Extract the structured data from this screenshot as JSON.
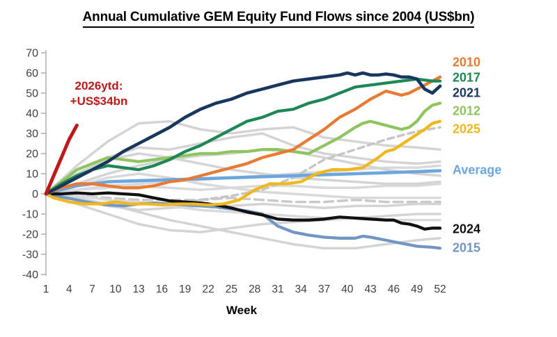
{
  "title": "Annual Cumulative GEM Equity Fund Flows since 2004 (US$bn)",
  "annotation": {
    "line1": "2026ytd:",
    "line2": "+US$34bn",
    "color": "#c01818"
  },
  "legend": [
    {
      "label": "2010",
      "color": "#e87b33"
    },
    {
      "label": "2017",
      "color": "#1e8756"
    },
    {
      "label": "2021",
      "color": "#17375e"
    },
    {
      "label": "2012",
      "color": "#8fc560"
    },
    {
      "label": "2025",
      "color": "#f0b71e"
    },
    {
      "label": "Average",
      "color": "#6ca6df"
    },
    {
      "label": "2024",
      "color": "#111111"
    },
    {
      "label": "2015",
      "color": "#7296c4"
    }
  ],
  "chart_data": {
    "type": "line",
    "title": "Annual Cumulative GEM Equity Fund Flows since 2004 (US$bn)",
    "xlabel": "Week",
    "ylabel": "",
    "xlim": [
      1,
      52
    ],
    "ylim": [
      -40,
      70
    ],
    "x_ticks": [
      1,
      4,
      7,
      10,
      13,
      16,
      19,
      22,
      25,
      28,
      31,
      34,
      37,
      40,
      43,
      46,
      49,
      52
    ],
    "y_ticks": [
      70,
      60,
      50,
      40,
      30,
      20,
      10,
      0,
      -10,
      -20,
      -30,
      -40
    ],
    "grid": false,
    "legend_position": "right",
    "annotation": "2026ytd: +US$34bn",
    "series": [
      {
        "name": "gray-1",
        "role": "background",
        "color": "#d4d4d4",
        "weeks": [
          1,
          5,
          9,
          13,
          17,
          21,
          25,
          29,
          33,
          37,
          41,
          45,
          49,
          52
        ],
        "values": [
          0,
          14,
          26,
          35,
          36,
          32,
          30,
          32,
          33,
          28,
          26,
          24,
          23,
          22
        ]
      },
      {
        "name": "gray-2",
        "role": "background",
        "color": "#d4d4d4",
        "weeks": [
          1,
          5,
          9,
          13,
          17,
          21,
          25,
          29,
          33,
          37,
          41,
          45,
          49,
          52
        ],
        "values": [
          0,
          8,
          18,
          23,
          22,
          25,
          28,
          30,
          24,
          20,
          18,
          16,
          15,
          16
        ]
      },
      {
        "name": "gray-3",
        "role": "background",
        "color": "#d9d9d9",
        "weeks": [
          1,
          5,
          9,
          13,
          17,
          21,
          25,
          29,
          33,
          37,
          41,
          45,
          49,
          52
        ],
        "values": [
          0,
          2,
          4,
          5,
          6,
          7,
          8,
          9,
          10,
          11,
          12,
          13,
          13,
          14
        ]
      },
      {
        "name": "gray-4",
        "role": "background",
        "color": "#d4d4d4",
        "weeks": [
          1,
          5,
          9,
          13,
          17,
          21,
          25,
          29,
          33,
          37,
          41,
          45,
          49,
          52
        ],
        "values": [
          0,
          5,
          10,
          14,
          17,
          19,
          20,
          22,
          21,
          18,
          15,
          12,
          10,
          9
        ]
      },
      {
        "name": "gray-5",
        "role": "background",
        "color": "#d9d9d9",
        "weeks": [
          1,
          5,
          9,
          13,
          17,
          21,
          25,
          29,
          33,
          37,
          41,
          45,
          49,
          52
        ],
        "values": [
          0,
          2,
          3,
          4,
          3,
          2,
          3,
          4,
          4,
          3,
          3,
          4,
          4,
          5
        ]
      },
      {
        "name": "gray-6-dashed",
        "role": "background",
        "color": "#c9c9c9",
        "dash": "13 7",
        "weeks": [
          1,
          5,
          9,
          13,
          17,
          21,
          25,
          29,
          33,
          37,
          41,
          45,
          49,
          52
        ],
        "values": [
          0,
          -1,
          -2,
          -3,
          -3,
          -3,
          -2,
          -3,
          -4,
          -4,
          -3,
          -4,
          -4,
          -4
        ]
      },
      {
        "name": "gray-7",
        "role": "background",
        "color": "#d4d4d4",
        "weeks": [
          1,
          5,
          9,
          13,
          17,
          21,
          25,
          29,
          33,
          37,
          41,
          45,
          49,
          52
        ],
        "values": [
          0,
          -3,
          -6,
          -8,
          -7,
          -6,
          -6,
          -5,
          -6,
          -7,
          -6,
          -6,
          -5,
          -5
        ]
      },
      {
        "name": "gray-8",
        "role": "background",
        "color": "#d4d4d4",
        "weeks": [
          1,
          5,
          9,
          13,
          17,
          21,
          25,
          29,
          33,
          37,
          41,
          45,
          49,
          52
        ],
        "values": [
          0,
          -5,
          -10,
          -15,
          -18,
          -19,
          -17,
          -15,
          -14,
          -13,
          -12,
          -11,
          -10,
          -10
        ]
      },
      {
        "name": "gray-9",
        "role": "background",
        "color": "#d4d4d4",
        "weeks": [
          1,
          5,
          9,
          13,
          17,
          21,
          25,
          29,
          33,
          37,
          41,
          45,
          49,
          52
        ],
        "values": [
          0,
          -2,
          -5,
          -9,
          -13,
          -16,
          -19,
          -22,
          -25,
          -27,
          -27,
          -25,
          -23,
          -22
        ]
      },
      {
        "name": "gray-10",
        "role": "background",
        "color": "#d9d9d9",
        "weeks": [
          1,
          5,
          9,
          13,
          17,
          21,
          25,
          29,
          33,
          37,
          41,
          45,
          49,
          52
        ],
        "values": [
          0,
          -1,
          -3,
          -4,
          -6,
          -8,
          -9,
          -10,
          -11,
          -12,
          -12,
          -13,
          -13,
          -13
        ]
      },
      {
        "name": "gray-11",
        "role": "background",
        "color": "#d4d4d4",
        "weeks": [
          1,
          5,
          9,
          13,
          17,
          21,
          25,
          29,
          33,
          37,
          41,
          45,
          49,
          52
        ],
        "values": [
          0,
          10,
          17,
          20,
          18,
          15,
          12,
          10,
          8,
          7,
          6,
          5,
          5,
          6
        ]
      },
      {
        "name": "gray-12",
        "role": "background",
        "color": "#d9d9d9",
        "weeks": [
          1,
          5,
          9,
          13,
          17,
          21,
          25,
          29,
          33,
          37,
          41,
          45,
          49,
          52
        ],
        "values": [
          0,
          4,
          8,
          10,
          8,
          5,
          3,
          1,
          0,
          -1,
          -2,
          -2,
          -2,
          -2
        ]
      },
      {
        "name": "gray-13-dashed",
        "role": "background",
        "color": "#c6c6c6",
        "dash": "9 6",
        "weeks": [
          17,
          21,
          25,
          29,
          33,
          37,
          41,
          45,
          49,
          52
        ],
        "values": [
          -5,
          -3,
          -1,
          2,
          8,
          17,
          22,
          27,
          31,
          33
        ]
      },
      {
        "name": "Average",
        "role": "average",
        "color": "#6ca6df",
        "weeks": [
          1,
          3,
          5,
          7,
          9,
          13,
          17,
          21,
          25,
          29,
          33,
          37,
          41,
          45,
          49,
          52
        ],
        "values": [
          0,
          2,
          4,
          5,
          6,
          6.5,
          7,
          7.5,
          8,
          8.5,
          9,
          9.5,
          10,
          10.5,
          11,
          11.5
        ]
      },
      {
        "name": "2015",
        "role": "year",
        "color": "#7296c4",
        "weeks": [
          1,
          3,
          5,
          7,
          9,
          11,
          13,
          15,
          17,
          19,
          21,
          23,
          25,
          27,
          29,
          30,
          31,
          32,
          33,
          35,
          37,
          39,
          41,
          42,
          43,
          45,
          47,
          49,
          51,
          52
        ],
        "values": [
          0,
          -1.5,
          -3,
          -4.5,
          -5.5,
          -6,
          -5,
          -4.5,
          -5,
          -5.5,
          -6,
          -6.5,
          -7.5,
          -8.5,
          -10,
          -13,
          -16,
          -17.5,
          -19,
          -20.5,
          -21.5,
          -22,
          -22,
          -21,
          -21.5,
          -23,
          -24.5,
          -26,
          -26.5,
          -27
        ]
      },
      {
        "name": "2024",
        "role": "year",
        "color": "#111111",
        "weeks": [
          1,
          3,
          5,
          7,
          9,
          11,
          13,
          15,
          17,
          19,
          21,
          23,
          25,
          27,
          29,
          31,
          33,
          35,
          37,
          39,
          41,
          43,
          45,
          46,
          47,
          48,
          49,
          50,
          51,
          52
        ],
        "values": [
          0,
          0,
          0.5,
          0,
          0.5,
          0,
          -0.5,
          -2,
          -3.5,
          -4,
          -4.5,
          -5.5,
          -7,
          -9,
          -10.5,
          -12.5,
          -13,
          -13,
          -12.5,
          -11.5,
          -12,
          -12.5,
          -13,
          -13,
          -14.5,
          -15,
          -16,
          -17.5,
          -17,
          -17
        ]
      },
      {
        "name": "2025",
        "role": "year",
        "color": "#f0b71e",
        "weeks": [
          1,
          2,
          4,
          6,
          8,
          10,
          12,
          14,
          16,
          18,
          20,
          22,
          24,
          26,
          28,
          30,
          32,
          34,
          36,
          38,
          40,
          42,
          44,
          45,
          46,
          48,
          50,
          51,
          52
        ],
        "values": [
          0,
          -2,
          -4,
          -5,
          -5,
          -4,
          -5,
          -5,
          -5.5,
          -5,
          -5,
          -5.5,
          -5,
          -3,
          2,
          5,
          5,
          6,
          10,
          12,
          12,
          13,
          18,
          21,
          22,
          27,
          32,
          35,
          36
        ]
      },
      {
        "name": "2012",
        "role": "year",
        "color": "#8fc560",
        "weeks": [
          1,
          3,
          5,
          7,
          9,
          11,
          13,
          15,
          17,
          19,
          21,
          23,
          25,
          27,
          29,
          31,
          33,
          35,
          37,
          39,
          41,
          42,
          43,
          45,
          47,
          48,
          49,
          50,
          51,
          52
        ],
        "values": [
          0,
          6,
          12,
          15,
          18,
          17,
          16,
          17,
          18,
          19,
          20,
          20,
          21,
          21,
          22,
          22,
          21,
          20,
          24,
          28,
          33,
          35,
          36,
          34,
          32,
          33,
          36,
          41,
          44,
          45
        ]
      },
      {
        "name": "2010",
        "role": "year",
        "color": "#e87b33",
        "weeks": [
          1,
          3,
          5,
          7,
          9,
          11,
          13,
          15,
          17,
          19,
          21,
          23,
          25,
          27,
          29,
          31,
          33,
          35,
          37,
          39,
          41,
          43,
          44,
          45,
          46,
          47,
          48,
          49,
          50,
          51,
          52
        ],
        "values": [
          0,
          3,
          5,
          5,
          4,
          3,
          3,
          4,
          6,
          7,
          9,
          11,
          13,
          15,
          18,
          20,
          22,
          27,
          32,
          38,
          42,
          47,
          49,
          51,
          50,
          49,
          50,
          52,
          54,
          56,
          58
        ]
      },
      {
        "name": "2017",
        "role": "year",
        "color": "#1e8756",
        "weeks": [
          1,
          3,
          5,
          7,
          9,
          11,
          13,
          15,
          17,
          19,
          21,
          23,
          25,
          27,
          29,
          31,
          33,
          35,
          37,
          39,
          41,
          43,
          45,
          47,
          49,
          51,
          52
        ],
        "values": [
          0,
          5,
          9,
          12,
          14,
          13,
          12,
          14,
          17,
          21,
          24,
          28,
          32,
          36,
          38,
          41,
          42,
          45,
          47,
          50,
          53,
          54,
          55,
          56,
          57,
          56,
          56
        ]
      },
      {
        "name": "2021",
        "role": "year2021",
        "color": "#17375e",
        "weeks": [
          1,
          3,
          5,
          7,
          9,
          11,
          13,
          15,
          17,
          19,
          21,
          23,
          25,
          27,
          29,
          31,
          33,
          35,
          37,
          39,
          40,
          41,
          42,
          43,
          44,
          45,
          46,
          47,
          48,
          49,
          50,
          51,
          52
        ],
        "values": [
          0,
          4,
          8,
          12,
          16,
          21,
          25,
          29,
          33,
          38,
          42,
          45,
          47,
          50,
          52,
          54,
          56,
          57,
          58,
          59,
          60,
          59,
          60,
          59,
          59,
          59.5,
          59,
          58,
          58,
          57,
          52,
          50,
          53.5
        ]
      },
      {
        "name": "2026ytd",
        "role": "ytd",
        "color": "#c01818",
        "weeks": [
          1,
          2,
          3,
          4,
          5
        ],
        "values": [
          0,
          9,
          18,
          27,
          34
        ]
      }
    ]
  }
}
